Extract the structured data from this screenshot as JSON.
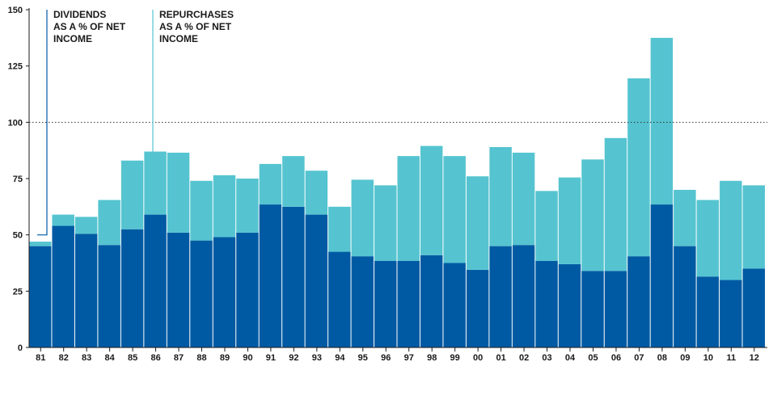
{
  "chart_data": {
    "type": "bar",
    "stacked": true,
    "categories": [
      "81",
      "82",
      "83",
      "84",
      "85",
      "86",
      "87",
      "88",
      "89",
      "90",
      "91",
      "92",
      "93",
      "94",
      "95",
      "96",
      "97",
      "98",
      "99",
      "00",
      "01",
      "02",
      "03",
      "04",
      "05",
      "06",
      "07",
      "08",
      "09",
      "10",
      "11",
      "12"
    ],
    "series": [
      {
        "color": "#005aa3",
        "values": [
          45,
          54,
          50.5,
          45.5,
          52.5,
          59,
          51,
          47.5,
          49,
          51,
          63.5,
          62.5,
          59,
          42.5,
          40.5,
          38.5,
          38.5,
          41,
          37.5,
          34.5,
          45,
          45.5,
          38.5,
          37,
          34,
          34,
          40.5,
          63.5,
          45,
          31.5,
          30,
          35
        ]
      },
      {
        "color": "#55c4d0",
        "values": [
          2,
          5,
          7.5,
          20,
          30.5,
          28,
          35.5,
          26.5,
          27.5,
          24,
          18,
          22.5,
          19.5,
          20,
          34,
          33.5,
          46.5,
          48.5,
          47.5,
          41.5,
          44,
          41,
          31,
          38.5,
          49.5,
          59,
          79,
          74,
          25,
          34,
          44,
          37
        ]
      }
    ],
    "yticks": [
      "0",
      "25",
      "50",
      "75",
      "100",
      "125",
      "150"
    ],
    "ylim": [
      0,
      150
    ],
    "reference_line": 100,
    "annotations": [
      {
        "id": "dividends",
        "lines": [
          "DIVIDENDS",
          "AS A % OF NET",
          "INCOME"
        ],
        "target_category": "81",
        "target_value": 50
      },
      {
        "id": "repurchases",
        "lines": [
          "REPURCHASES",
          "AS A % OF NET",
          "INCOME"
        ],
        "target_category": "86",
        "target_value": 87
      }
    ],
    "grid": false,
    "legend": "none"
  }
}
